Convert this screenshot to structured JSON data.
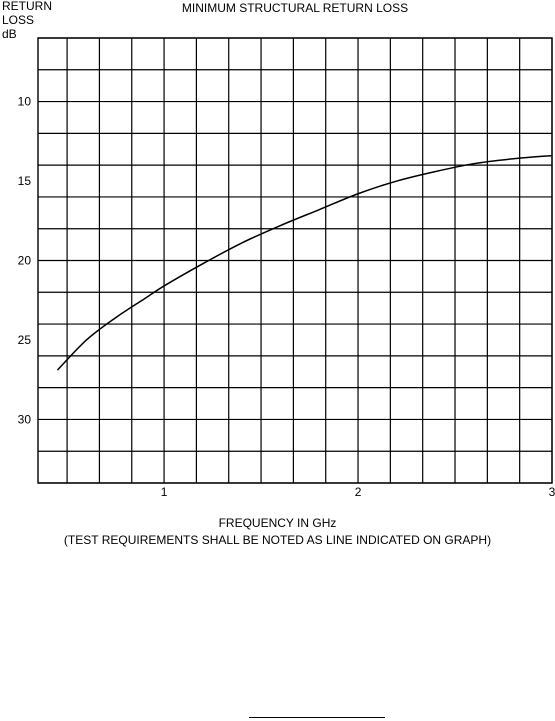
{
  "chart_data": {
    "type": "line",
    "title": "MINIMUM STRUCTURAL RETURN LOSS",
    "ylabel_lines": [
      "RETURN",
      "LOSS",
      "dB"
    ],
    "xlabel": "FREQUENCY IN GHz",
    "caption": "(TEST REQUIREMENTS SHALL BE NOTED AS LINE INDICATED ON GRAPH)",
    "xlim": [
      0.35,
      3
    ],
    "ylim": [
      6,
      34
    ],
    "y_inverted": true,
    "grid": true,
    "x_ticks": [
      1,
      2,
      3
    ],
    "x_tick_labels": [
      "1",
      "2",
      "3"
    ],
    "y_ticks": [
      10,
      15,
      20,
      25,
      30
    ],
    "y_tick_labels": [
      "10",
      "15",
      "20",
      "25",
      "30"
    ],
    "x_grid_step": 0.166667,
    "y_grid_step": 2,
    "series": [
      {
        "x": [
          0.45,
          0.6,
          0.75,
          0.9,
          1.0,
          1.2,
          1.4,
          1.6,
          1.8,
          2.0,
          2.2,
          2.4,
          2.6,
          2.8,
          3.0
        ],
        "y": [
          26.9,
          25.0,
          23.6,
          22.4,
          21.6,
          20.2,
          18.9,
          17.8,
          16.8,
          15.8,
          15.0,
          14.4,
          13.9,
          13.6,
          13.4
        ]
      }
    ]
  }
}
